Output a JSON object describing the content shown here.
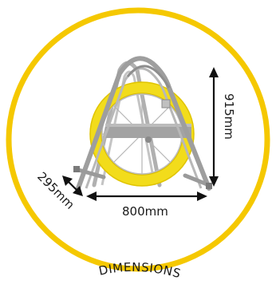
{
  "colors": {
    "ring": "#F5C800",
    "reel_yellow": "#F2DC1B",
    "frame": "#9e9e9e",
    "frame_dark": "#7a7a7a",
    "arrow": "#111111",
    "text": "#1a1a1a"
  },
  "icon": "cable-reel-frame",
  "labels": {
    "height": "915mm",
    "width": "800mm",
    "depth": "295mm",
    "caption": "DIMENSIONS"
  }
}
